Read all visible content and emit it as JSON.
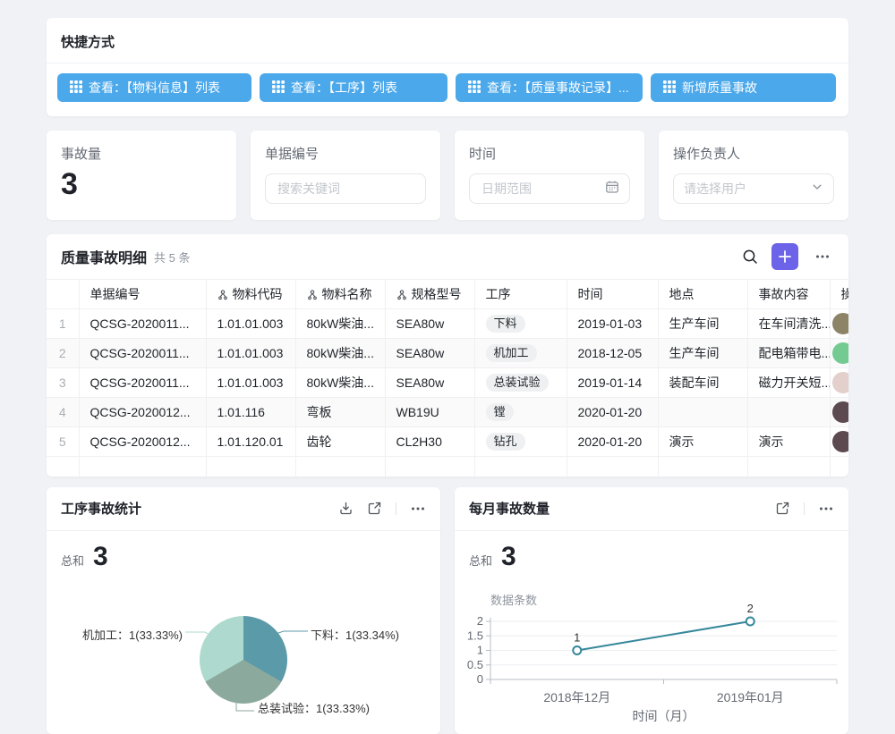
{
  "shortcuts": {
    "title": "快捷方式",
    "buttons": [
      {
        "label": "查看：【物料信息】列表"
      },
      {
        "label": "查看：【工序】列表"
      },
      {
        "label": "查看：【质量事故记录】..."
      },
      {
        "label": "新增质量事故"
      }
    ]
  },
  "filters": {
    "accident_count": {
      "label": "事故量",
      "value": "3"
    },
    "doc_no": {
      "label": "单据编号",
      "placeholder": "搜索关键词"
    },
    "time": {
      "label": "时间",
      "placeholder": "日期范围"
    },
    "operator": {
      "label": "操作负责人",
      "placeholder": "请选择用户"
    }
  },
  "table": {
    "title": "质量事故明细",
    "count": "共 5 条",
    "columns": [
      {
        "label": "单据编号",
        "lookup": false
      },
      {
        "label": "物料代码",
        "lookup": true
      },
      {
        "label": "物料名称",
        "lookup": true
      },
      {
        "label": "规格型号",
        "lookup": true
      },
      {
        "label": "工序",
        "lookup": false
      },
      {
        "label": "时间",
        "lookup": false
      },
      {
        "label": "地点",
        "lookup": false
      },
      {
        "label": "事故内容",
        "lookup": false
      },
      {
        "label": "操作负责人",
        "lookup": false
      }
    ],
    "rows": [
      {
        "num": "1",
        "doc_no": "QCSG-2020011...",
        "material_code": "1.01.01.003",
        "material_name": "80kW柴油...",
        "spec": "SEA80w",
        "process": "下料",
        "time": "2019-01-03",
        "place": "生产车间",
        "content": "在车间清洗...",
        "avatar_color": "#8d8468"
      },
      {
        "num": "2",
        "doc_no": "QCSG-2020011...",
        "material_code": "1.01.01.003",
        "material_name": "80kW柴油...",
        "spec": "SEA80w",
        "process": "机加工",
        "time": "2018-12-05",
        "place": "生产车间",
        "content": "配电箱带电...",
        "avatar_color": "#74cb92"
      },
      {
        "num": "3",
        "doc_no": "QCSG-2020011...",
        "material_code": "1.01.01.003",
        "material_name": "80kW柴油...",
        "spec": "SEA80w",
        "process": "总装试验",
        "time": "2019-01-14",
        "place": "装配车间",
        "content": "磁力开关短...",
        "avatar_color": "#e3cfcb"
      },
      {
        "num": "4",
        "doc_no": "QCSG-2020012...",
        "material_code": "1.01.116",
        "material_name": "弯板",
        "spec": "WB19U",
        "process": "镗",
        "time": "2020-01-20",
        "place": "",
        "content": "",
        "avatar_color": "#5c4a50"
      },
      {
        "num": "5",
        "doc_no": "QCSG-2020012...",
        "material_code": "1.01.120.01",
        "material_name": "齿轮",
        "spec": "CL2H30",
        "process": "钻孔",
        "time": "2020-01-20",
        "place": "演示",
        "content": "演示",
        "avatar_color": "#5c4a50"
      }
    ]
  },
  "pie_card": {
    "title": "工序事故统计",
    "sum_label": "总和",
    "sum": "3"
  },
  "line_card": {
    "title": "每月事故数量",
    "sum_label": "总和",
    "sum": "3"
  },
  "chart_data": [
    {
      "type": "pie",
      "title": "工序事故统计",
      "total_label": "总和",
      "total": 3,
      "slices": [
        {
          "label": "下料",
          "value": 1,
          "percent": "33.34%",
          "display": "下料：1(33.34%)",
          "color": "#5b9aa8"
        },
        {
          "label": "总装试验",
          "value": 1,
          "percent": "33.33%",
          "display": "总装试验：1(33.33%)",
          "color": "#8ca99d"
        },
        {
          "label": "机加工",
          "value": 1,
          "percent": "33.33%",
          "display": "机加工：1(33.33%)",
          "color": "#aed9ce"
        }
      ],
      "legend_position": "outside-labels"
    },
    {
      "type": "line",
      "title": "每月事故数量",
      "total_label": "总和",
      "total": 3,
      "ylabel": "数据条数",
      "xlabel": "时间（月）",
      "x": [
        "2018年12月",
        "2019年01月"
      ],
      "values": [
        1,
        2
      ],
      "yticks": [
        0,
        0.5,
        1,
        1.5,
        2
      ],
      "ylim": [
        0,
        2
      ],
      "grid": true,
      "line_color": "#35889b"
    }
  ],
  "colors": {
    "button_blue": "#4ba8ea",
    "add_purple": "#6c63e8",
    "page_bg": "#f0f2f5"
  }
}
